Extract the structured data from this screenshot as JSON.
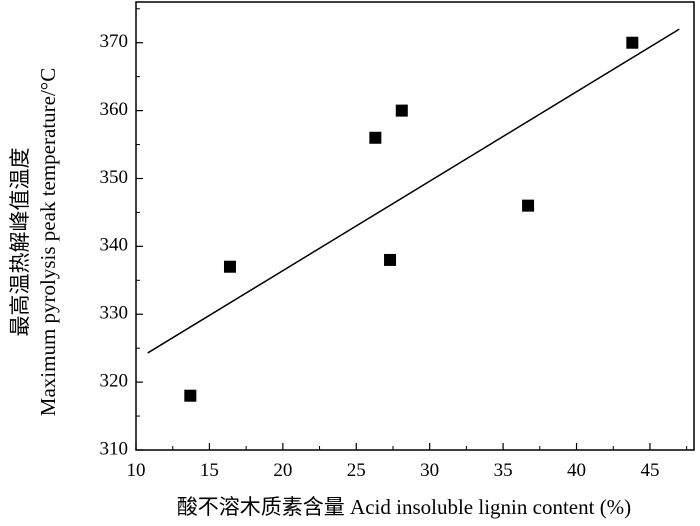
{
  "chart_data": {
    "type": "scatter",
    "title": "",
    "xlabel": "酸不溶木质素含量 Acid insoluble lignin content (%)",
    "ylabel_cn": "最高温热解峰值温度",
    "ylabel_en": "Maximum pyrolysis peak temperature/°C",
    "xlim": [
      10,
      48
    ],
    "ylim": [
      310,
      376
    ],
    "x_ticks": [
      10,
      15,
      20,
      25,
      30,
      35,
      40,
      45
    ],
    "y_ticks": [
      310,
      320,
      330,
      340,
      350,
      360,
      370
    ],
    "points": [
      {
        "x": 13.7,
        "y": 318
      },
      {
        "x": 16.4,
        "y": 337
      },
      {
        "x": 26.3,
        "y": 356
      },
      {
        "x": 27.3,
        "y": 338
      },
      {
        "x": 28.1,
        "y": 360
      },
      {
        "x": 36.7,
        "y": 346
      },
      {
        "x": 43.8,
        "y": 370
      }
    ],
    "fit_line": {
      "x": [
        10.8,
        47.0
      ],
      "y": [
        324.3,
        372.0
      ]
    },
    "grid": false,
    "legend": "none",
    "colors": {
      "marker": "#000000",
      "line": "#000000",
      "axis": "#000000"
    }
  }
}
